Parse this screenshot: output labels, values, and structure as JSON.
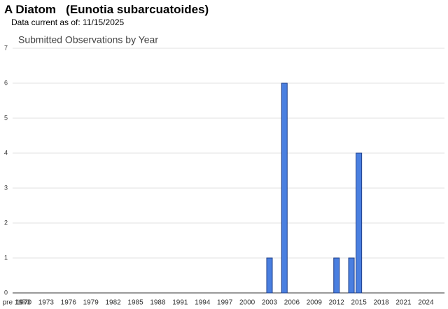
{
  "header": {
    "title": "A Diatom   (Eunotia subarcuatoides)",
    "subtitle": "Data current as of: 11/15/2025"
  },
  "chart_data": {
    "type": "bar",
    "title": "Submitted Observations by Year",
    "categories": [
      "pre 1970",
      "1970",
      null,
      null,
      "1973",
      null,
      null,
      "1976",
      null,
      null,
      "1979",
      null,
      null,
      "1982",
      null,
      null,
      "1985",
      null,
      null,
      "1988",
      null,
      null,
      "1991",
      null,
      null,
      "1994",
      null,
      null,
      "1997",
      null,
      null,
      "2000",
      null,
      null,
      "2003",
      null,
      null,
      "2006",
      null,
      null,
      "2009",
      null,
      null,
      "2012",
      null,
      null,
      "2015",
      null,
      null,
      "2018",
      null,
      null,
      "2021",
      null,
      null,
      "2024",
      null,
      null
    ],
    "values": [
      0,
      0,
      0,
      0,
      0,
      0,
      0,
      0,
      0,
      0,
      0,
      0,
      0,
      0,
      0,
      0,
      0,
      0,
      0,
      0,
      0,
      0,
      0,
      0,
      0,
      0,
      0,
      0,
      0,
      0,
      0,
      0,
      0,
      0,
      1,
      0,
      6,
      0,
      0,
      0,
      0,
      0,
      0,
      1,
      0,
      1,
      4,
      0,
      0,
      0,
      0,
      0,
      0,
      0,
      0,
      0,
      0,
      0
    ],
    "color": "#4a7fe0",
    "ylim": [
      0,
      7
    ],
    "yticks": [
      0,
      1,
      2,
      3,
      4,
      5,
      6,
      7
    ],
    "grid": true
  }
}
